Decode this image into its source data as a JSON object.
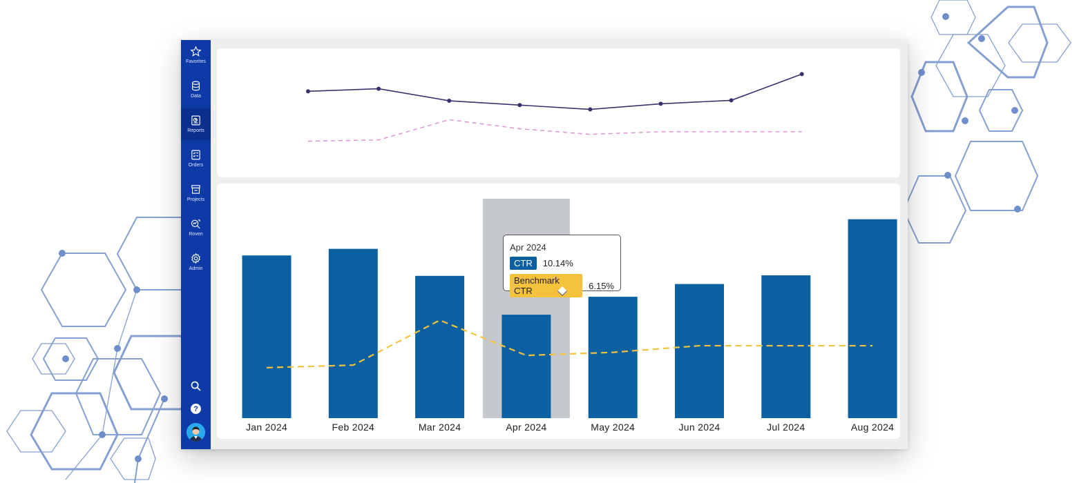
{
  "sidebar": {
    "items": [
      {
        "label": "Favorites",
        "icon": "star-icon"
      },
      {
        "label": "Data",
        "icon": "database-icon"
      },
      {
        "label": "Reports",
        "icon": "report-icon",
        "active": true
      },
      {
        "label": "Orders",
        "icon": "checklist-icon"
      },
      {
        "label": "Projects",
        "icon": "store-icon"
      },
      {
        "label": "Roven",
        "icon": "magnify-chart-icon"
      },
      {
        "label": "Admin",
        "icon": "gear-icon"
      }
    ],
    "bottom": {
      "search_icon": "search-icon",
      "help_label": "?",
      "avatar": "user-avatar"
    }
  },
  "colors": {
    "sidebar_bg": "#0e3aa8",
    "bar": "#0b60a1",
    "benchmark": "#f5c33b",
    "top_line": "#3b2f6e",
    "top_dashed": "#d98fd1",
    "hover_band": "#c5c8cc"
  },
  "tooltip": {
    "title": "Apr 2024",
    "ctr_label": "CTR",
    "ctr_value": "10.14%",
    "benchmark_label": "Benchmark CTR",
    "benchmark_value": "6.15%"
  },
  "chart_data": [
    {
      "type": "line",
      "x": [
        "Jan 2024",
        "Feb 2024",
        "Mar 2024",
        "Apr 2024",
        "May 2024",
        "Jun 2024",
        "Jul 2024",
        "Aug 2024"
      ],
      "series": [
        {
          "values": [
            20.0,
            20.6,
            17.8,
            16.8,
            15.8,
            17.1,
            17.9,
            24.0
          ],
          "style": "solid with markers"
        },
        {
          "values": [
            8.4,
            8.7,
            13.4,
            11.3,
            10.0,
            10.6,
            10.6,
            10.6
          ],
          "style": "dashed"
        }
      ],
      "ylim": [
        0,
        30
      ],
      "grid": false
    },
    {
      "type": "bar",
      "categories": [
        "Jan 2024",
        "Feb 2024",
        "Mar 2024",
        "Apr 2024",
        "May 2024",
        "Jun 2024",
        "Jul 2024",
        "Aug 2024"
      ],
      "series": [
        {
          "name": "CTR",
          "values": [
            15.95,
            16.6,
            13.95,
            10.14,
            11.9,
            13.15,
            14.0,
            19.5
          ]
        },
        {
          "name": "Benchmark CTR",
          "values": [
            4.95,
            5.2,
            9.6,
            6.15,
            6.45,
            7.1,
            7.1,
            7.1
          ],
          "style": "dashed line"
        }
      ],
      "ylim": [
        0,
        23
      ],
      "highlighted_category": "Apr 2024",
      "grid": false
    }
  ]
}
